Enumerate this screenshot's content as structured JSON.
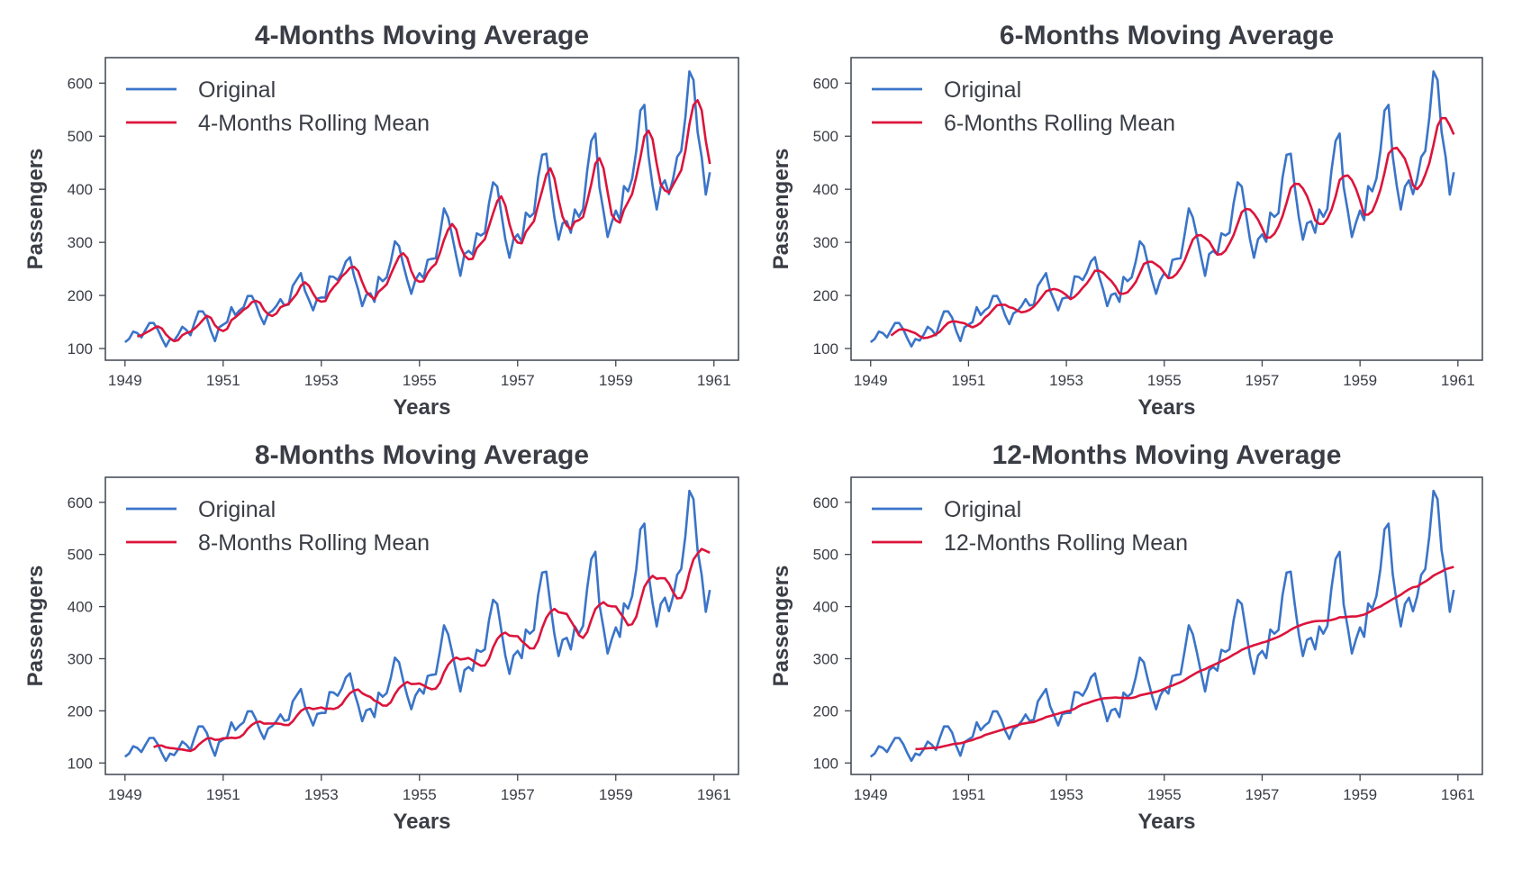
{
  "colors": {
    "original": "#3a74c8",
    "rolling": "#dc143c",
    "axis": "#3f4550",
    "text": "#3a3d45"
  },
  "x_ticks": [
    "1949",
    "1951",
    "1953",
    "1955",
    "1957",
    "1959",
    "1961"
  ],
  "y_ticks": [
    "100",
    "200",
    "300",
    "400",
    "500",
    "600"
  ],
  "original_series": {
    "name": "Original",
    "start": "1949-01",
    "frequency": "monthly",
    "values": [
      112,
      118,
      132,
      129,
      121,
      135,
      148,
      148,
      136,
      119,
      104,
      118,
      115,
      126,
      141,
      135,
      125,
      149,
      170,
      170,
      158,
      133,
      114,
      140,
      145,
      150,
      178,
      163,
      172,
      178,
      199,
      199,
      184,
      162,
      146,
      166,
      171,
      180,
      193,
      181,
      183,
      218,
      230,
      242,
      209,
      191,
      172,
      194,
      196,
      196,
      236,
      235,
      229,
      243,
      264,
      272,
      237,
      211,
      180,
      201,
      204,
      188,
      235,
      227,
      234,
      264,
      302,
      293,
      259,
      229,
      203,
      229,
      242,
      233,
      267,
      269,
      270,
      315,
      364,
      347,
      312,
      274,
      237,
      278,
      284,
      277,
      317,
      313,
      318,
      374,
      413,
      405,
      355,
      306,
      271,
      306,
      315,
      301,
      356,
      348,
      355,
      422,
      465,
      467,
      404,
      347,
      305,
      336,
      340,
      318,
      362,
      348,
      363,
      435,
      491,
      505,
      404,
      359,
      310,
      337,
      360,
      342,
      406,
      396,
      420,
      472,
      548,
      559,
      463,
      407,
      362,
      405,
      417,
      391,
      419,
      461,
      472,
      535,
      622,
      606,
      508,
      461,
      390,
      432
    ]
  },
  "chart_data": [
    {
      "type": "line",
      "title": "4-Months Moving Average",
      "xlabel": "Years",
      "ylabel": "Passengers",
      "xlim": [
        1948.6,
        1961.5
      ],
      "ylim": [
        78,
        648
      ],
      "legend": "top-left",
      "grid": false,
      "series": [
        {
          "name": "Original",
          "source": "original_series"
        },
        {
          "name": "4-Months Rolling Mean",
          "rolling_window": 4
        }
      ]
    },
    {
      "type": "line",
      "title": "6-Months Moving Average",
      "xlabel": "Years",
      "ylabel": "Passengers",
      "xlim": [
        1948.6,
        1961.5
      ],
      "ylim": [
        78,
        648
      ],
      "legend": "top-left",
      "grid": false,
      "series": [
        {
          "name": "Original",
          "source": "original_series"
        },
        {
          "name": "6-Months Rolling Mean",
          "rolling_window": 6
        }
      ]
    },
    {
      "type": "line",
      "title": "8-Months Moving Average",
      "xlabel": "Years",
      "ylabel": "Passengers",
      "xlim": [
        1948.6,
        1961.5
      ],
      "ylim": [
        78,
        648
      ],
      "legend": "top-left",
      "grid": false,
      "series": [
        {
          "name": "Original",
          "source": "original_series"
        },
        {
          "name": "8-Months Rolling Mean",
          "rolling_window": 8
        }
      ]
    },
    {
      "type": "line",
      "title": "12-Months Moving Average",
      "xlabel": "Years",
      "ylabel": "Passengers",
      "xlim": [
        1948.6,
        1961.5
      ],
      "ylim": [
        78,
        648
      ],
      "legend": "top-left",
      "grid": false,
      "series": [
        {
          "name": "Original",
          "source": "original_series"
        },
        {
          "name": "12-Months Rolling Mean",
          "rolling_window": 12
        }
      ]
    }
  ]
}
